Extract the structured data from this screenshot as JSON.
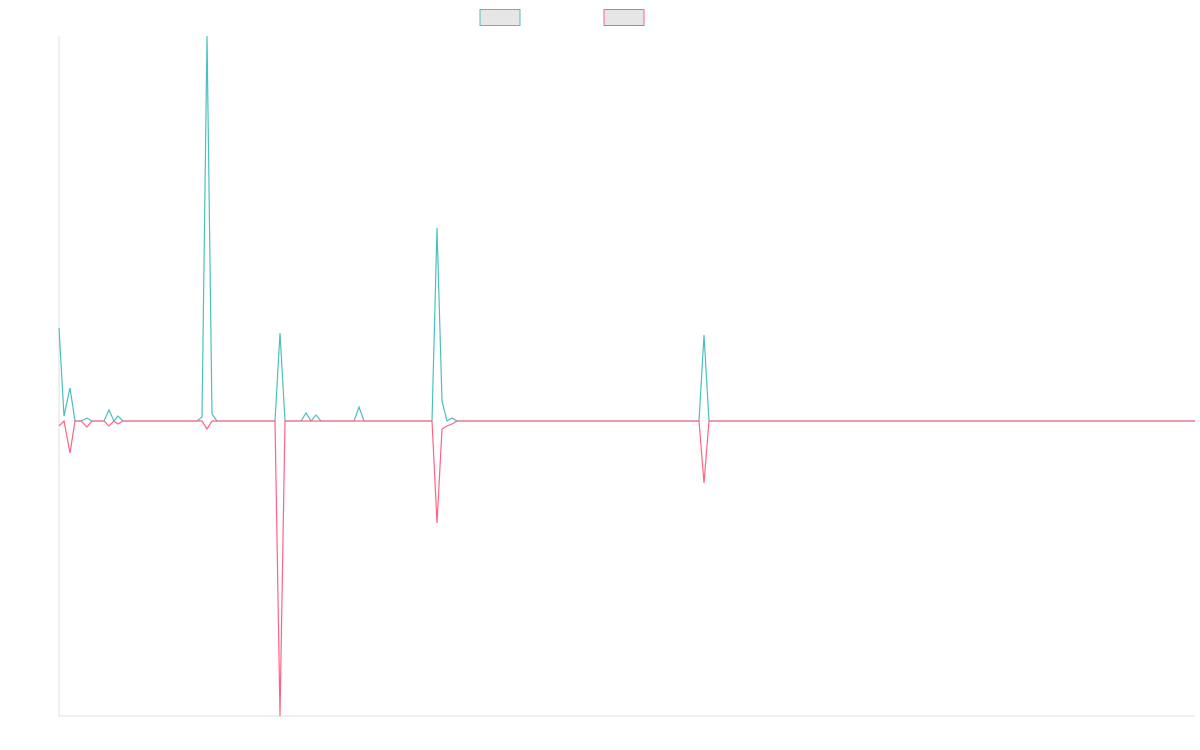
{
  "chart_data": {
    "type": "line",
    "x": [
      0,
      5,
      11,
      16,
      22,
      28,
      33,
      45,
      50,
      55,
      59,
      64,
      138,
      143,
      148,
      153,
      158,
      216,
      221,
      226,
      242,
      247,
      252,
      257,
      262,
      295,
      300,
      305,
      373,
      378,
      383,
      388,
      393,
      398,
      640,
      645,
      650,
      1136
    ],
    "xlim": [
      0,
      1136
    ],
    "ylim": [
      -295,
      385
    ],
    "series": [
      {
        "color": "#4bc0c0",
        "values": [
          93,
          5,
          33,
          0,
          0,
          3,
          0,
          0,
          11,
          0,
          5,
          0,
          0,
          4,
          385,
          7,
          0,
          0,
          88,
          0,
          0,
          8,
          0,
          6,
          0,
          0,
          14,
          0,
          0,
          193,
          20,
          0,
          3,
          0,
          0,
          86,
          0,
          0
        ]
      },
      {
        "color": "#ff6384",
        "values": [
          -5,
          0,
          -32,
          0,
          0,
          -6,
          0,
          0,
          -5,
          0,
          -3,
          0,
          0,
          0,
          -8,
          0,
          0,
          0,
          -295,
          0,
          0,
          0,
          0,
          0,
          0,
          0,
          0,
          0,
          0,
          -102,
          -8,
          -5,
          -3,
          0,
          0,
          -62,
          0,
          0
        ]
      }
    ]
  }
}
